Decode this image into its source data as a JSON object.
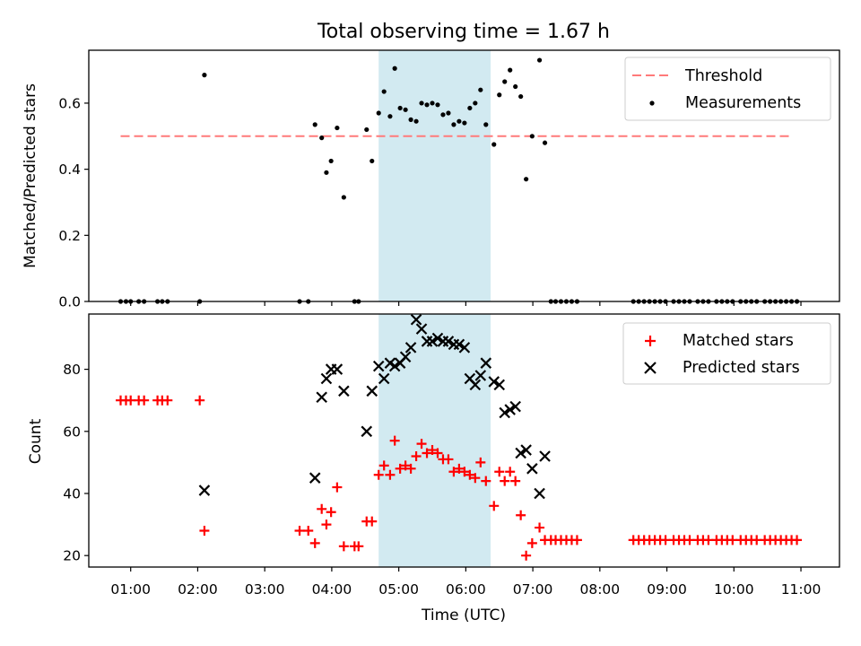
{
  "title": "Total observing time = 1.67 h",
  "colors": {
    "threshold": "#ff7a7a",
    "measurement": "#000000",
    "matched": "#ff0000",
    "predicted": "#000000",
    "observing_window": "#add8e6"
  },
  "chart_data": [
    {
      "type": "scatter",
      "panel": "top",
      "ylabel": "Matched/Predicted stars",
      "xlim": [
        0.375,
        11.575
      ],
      "ylim": [
        0,
        0.76
      ],
      "yticks": [
        0.0,
        0.2,
        0.4,
        0.6
      ],
      "ytick_labels": [
        "0.0",
        "0.2",
        "0.4",
        "0.6"
      ],
      "shaded_span": [
        4.7,
        6.37
      ],
      "threshold": {
        "name": "Threshold",
        "value": 0.5,
        "x": [
          0.85,
          10.87
        ]
      },
      "legend": {
        "position": "top-right",
        "entries": [
          "Threshold",
          "Measurements"
        ]
      },
      "series": [
        {
          "name": "Measurements",
          "points": [
            [
              0.85,
              0
            ],
            [
              0.93,
              0
            ],
            [
              1.0,
              0
            ],
            [
              1.12,
              0
            ],
            [
              1.2,
              0
            ],
            [
              1.4,
              0
            ],
            [
              1.47,
              0
            ],
            [
              1.55,
              0
            ],
            [
              2.03,
              0
            ],
            [
              2.1,
              0.685
            ],
            [
              3.52,
              0
            ],
            [
              3.65,
              0
            ],
            [
              3.75,
              0.535
            ],
            [
              3.85,
              0.495
            ],
            [
              3.92,
              0.39
            ],
            [
              3.99,
              0.425
            ],
            [
              4.08,
              0.525
            ],
            [
              4.18,
              0.315
            ],
            [
              4.34,
              0
            ],
            [
              4.4,
              0
            ],
            [
              4.52,
              0.52
            ],
            [
              4.6,
              0.425
            ],
            [
              4.7,
              0.57
            ],
            [
              4.78,
              0.635
            ],
            [
              4.87,
              0.56
            ],
            [
              4.94,
              0.705
            ],
            [
              5.02,
              0.585
            ],
            [
              5.1,
              0.58
            ],
            [
              5.18,
              0.55
            ],
            [
              5.26,
              0.545
            ],
            [
              5.34,
              0.6
            ],
            [
              5.42,
              0.595
            ],
            [
              5.5,
              0.6
            ],
            [
              5.58,
              0.595
            ],
            [
              5.66,
              0.565
            ],
            [
              5.74,
              0.57
            ],
            [
              5.82,
              0.535
            ],
            [
              5.9,
              0.545
            ],
            [
              5.98,
              0.54
            ],
            [
              6.06,
              0.585
            ],
            [
              6.14,
              0.6
            ],
            [
              6.22,
              0.64
            ],
            [
              6.3,
              0.535
            ],
            [
              6.42,
              0.475
            ],
            [
              6.5,
              0.625
            ],
            [
              6.58,
              0.665
            ],
            [
              6.66,
              0.7
            ],
            [
              6.74,
              0.65
            ],
            [
              6.82,
              0.62
            ],
            [
              6.9,
              0.37
            ],
            [
              6.99,
              0.5
            ],
            [
              7.1,
              0.73
            ],
            [
              7.18,
              0.48
            ],
            [
              7.27,
              0
            ],
            [
              7.34,
              0
            ],
            [
              7.42,
              0
            ],
            [
              7.5,
              0
            ],
            [
              7.58,
              0
            ],
            [
              7.66,
              0
            ],
            [
              8.5,
              0
            ],
            [
              8.58,
              0
            ],
            [
              8.66,
              0
            ],
            [
              8.74,
              0
            ],
            [
              8.82,
              0
            ],
            [
              8.9,
              0
            ],
            [
              8.98,
              0
            ],
            [
              9.1,
              0
            ],
            [
              9.18,
              0
            ],
            [
              9.26,
              0
            ],
            [
              9.34,
              0
            ],
            [
              9.46,
              0
            ],
            [
              9.54,
              0
            ],
            [
              9.62,
              0
            ],
            [
              9.74,
              0
            ],
            [
              9.82,
              0
            ],
            [
              9.9,
              0
            ],
            [
              9.98,
              0
            ],
            [
              10.1,
              0
            ],
            [
              10.18,
              0
            ],
            [
              10.26,
              0
            ],
            [
              10.34,
              0
            ],
            [
              10.46,
              0
            ],
            [
              10.54,
              0
            ],
            [
              10.62,
              0
            ],
            [
              10.7,
              0
            ],
            [
              10.78,
              0
            ],
            [
              10.86,
              0
            ],
            [
              10.94,
              0
            ]
          ]
        }
      ]
    },
    {
      "type": "scatter",
      "panel": "bottom",
      "ylabel": "Count",
      "xlabel": "Time (UTC)",
      "xlim": [
        0.375,
        11.575
      ],
      "ylim": [
        16.3,
        97.8
      ],
      "yticks": [
        20,
        40,
        60,
        80
      ],
      "ytick_labels": [
        "20",
        "40",
        "60",
        "80"
      ],
      "xticks": [
        1,
        2,
        3,
        4,
        5,
        6,
        7,
        8,
        9,
        10,
        11
      ],
      "xtick_labels": [
        "01:00",
        "02:00",
        "03:00",
        "04:00",
        "05:00",
        "06:00",
        "07:00",
        "08:00",
        "09:00",
        "10:00",
        "11:00"
      ],
      "shaded_span": [
        4.7,
        6.37
      ],
      "legend": {
        "position": "top-right",
        "entries": [
          "Matched stars",
          "Predicted stars"
        ]
      },
      "series": [
        {
          "name": "Matched stars",
          "marker": "+",
          "points": [
            [
              0.85,
              70
            ],
            [
              0.93,
              70
            ],
            [
              1.0,
              70
            ],
            [
              1.12,
              70
            ],
            [
              1.2,
              70
            ],
            [
              1.4,
              70
            ],
            [
              1.47,
              70
            ],
            [
              1.55,
              70
            ],
            [
              2.03,
              70
            ],
            [
              2.1,
              28
            ],
            [
              3.52,
              28
            ],
            [
              3.65,
              28
            ],
            [
              3.75,
              24
            ],
            [
              3.85,
              35
            ],
            [
              3.92,
              30
            ],
            [
              3.99,
              34
            ],
            [
              4.08,
              42
            ],
            [
              4.18,
              23
            ],
            [
              4.34,
              23
            ],
            [
              4.4,
              23
            ],
            [
              4.52,
              31
            ],
            [
              4.6,
              31
            ],
            [
              4.7,
              46
            ],
            [
              4.78,
              49
            ],
            [
              4.87,
              46
            ],
            [
              4.94,
              57
            ],
            [
              5.02,
              48
            ],
            [
              5.1,
              49
            ],
            [
              5.18,
              48
            ],
            [
              5.26,
              52
            ],
            [
              5.34,
              56
            ],
            [
              5.42,
              53
            ],
            [
              5.5,
              54
            ],
            [
              5.58,
              53
            ],
            [
              5.66,
              51
            ],
            [
              5.74,
              51
            ],
            [
              5.82,
              47
            ],
            [
              5.9,
              48
            ],
            [
              5.98,
              47
            ],
            [
              6.06,
              46
            ],
            [
              6.14,
              45
            ],
            [
              6.22,
              50
            ],
            [
              6.3,
              44
            ],
            [
              6.42,
              36
            ],
            [
              6.5,
              47
            ],
            [
              6.58,
              44
            ],
            [
              6.66,
              47
            ],
            [
              6.74,
              44
            ],
            [
              6.82,
              33
            ],
            [
              6.9,
              20
            ],
            [
              6.99,
              24
            ],
            [
              7.1,
              29
            ],
            [
              7.18,
              25
            ],
            [
              7.27,
              25
            ],
            [
              7.34,
              25
            ],
            [
              7.42,
              25
            ],
            [
              7.5,
              25
            ],
            [
              7.58,
              25
            ],
            [
              7.66,
              25
            ],
            [
              8.5,
              25
            ],
            [
              8.58,
              25
            ],
            [
              8.66,
              25
            ],
            [
              8.74,
              25
            ],
            [
              8.82,
              25
            ],
            [
              8.9,
              25
            ],
            [
              8.98,
              25
            ],
            [
              9.1,
              25
            ],
            [
              9.18,
              25
            ],
            [
              9.26,
              25
            ],
            [
              9.34,
              25
            ],
            [
              9.46,
              25
            ],
            [
              9.54,
              25
            ],
            [
              9.62,
              25
            ],
            [
              9.74,
              25
            ],
            [
              9.82,
              25
            ],
            [
              9.9,
              25
            ],
            [
              9.98,
              25
            ],
            [
              10.1,
              25
            ],
            [
              10.18,
              25
            ],
            [
              10.26,
              25
            ],
            [
              10.34,
              25
            ],
            [
              10.46,
              25
            ],
            [
              10.54,
              25
            ],
            [
              10.62,
              25
            ],
            [
              10.7,
              25
            ],
            [
              10.78,
              25
            ],
            [
              10.86,
              25
            ],
            [
              10.94,
              25
            ]
          ]
        },
        {
          "name": "Predicted stars",
          "marker": "x",
          "points": [
            [
              2.1,
              41
            ],
            [
              3.75,
              45
            ],
            [
              3.85,
              71
            ],
            [
              3.92,
              77
            ],
            [
              3.99,
              80
            ],
            [
              4.08,
              80
            ],
            [
              4.18,
              73
            ],
            [
              4.52,
              60
            ],
            [
              4.6,
              73
            ],
            [
              4.7,
              81
            ],
            [
              4.78,
              77
            ],
            [
              4.87,
              82
            ],
            [
              4.94,
              81
            ],
            [
              5.02,
              82
            ],
            [
              5.1,
              84
            ],
            [
              5.18,
              87
            ],
            [
              5.26,
              96
            ],
            [
              5.34,
              93
            ],
            [
              5.42,
              89
            ],
            [
              5.5,
              89
            ],
            [
              5.58,
              90
            ],
            [
              5.66,
              89
            ],
            [
              5.74,
              89
            ],
            [
              5.82,
              88
            ],
            [
              5.9,
              88
            ],
            [
              5.98,
              87
            ],
            [
              6.06,
              77
            ],
            [
              6.14,
              75
            ],
            [
              6.22,
              78
            ],
            [
              6.3,
              82
            ],
            [
              6.42,
              76
            ],
            [
              6.5,
              75
            ],
            [
              6.58,
              66
            ],
            [
              6.66,
              67
            ],
            [
              6.74,
              68
            ],
            [
              6.82,
              53
            ],
            [
              6.9,
              54
            ],
            [
              6.99,
              48
            ],
            [
              7.1,
              40
            ],
            [
              7.18,
              52
            ]
          ]
        }
      ]
    }
  ]
}
